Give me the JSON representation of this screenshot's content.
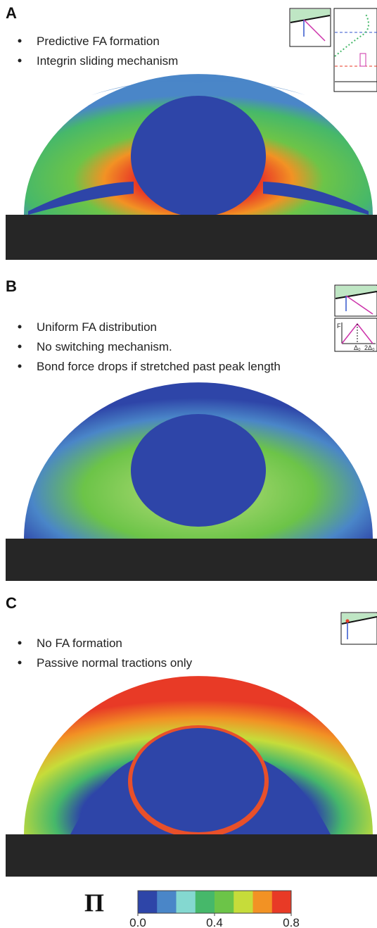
{
  "panels": [
    {
      "label": "A",
      "bullets": [
        "Predictive FA formation",
        "Integrin sliding mechanism"
      ]
    },
    {
      "label": "B",
      "bullets": [
        "Uniform FA distribution",
        "No switching mechanism.",
        "Bond force drops if stretched past peak length"
      ],
      "inset_texts": [
        "F",
        "Δ₀",
        "2Δ₀"
      ]
    },
    {
      "label": "C",
      "bullets": [
        "No FA formation",
        "Passive normal tractions only"
      ]
    }
  ],
  "colorbar": {
    "symbol": "Π",
    "colors": [
      "#2e45a8",
      "#4a86c8",
      "#84d8d0",
      "#46b86a",
      "#6cc448",
      "#c6dc3a",
      "#f29224",
      "#e83a26"
    ],
    "range": [
      0,
      0.8
    ],
    "ticks": [
      {
        "value": 0,
        "label": "0.0"
      },
      {
        "value": 0.4,
        "label": "0.4"
      },
      {
        "value": 0.8,
        "label": "0.8"
      }
    ]
  }
}
